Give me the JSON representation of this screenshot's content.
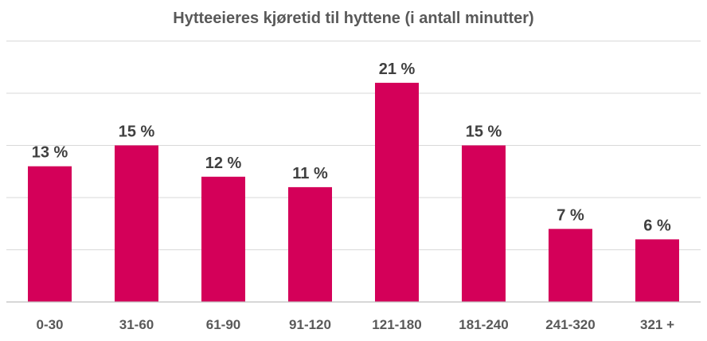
{
  "chart_data": {
    "type": "bar",
    "title": "Hytteeieres kjøretid til hyttene (i antall minutter)",
    "categories": [
      "0-30",
      "31-60",
      "61-90",
      "91-120",
      "121-180",
      "181-240",
      "241-320",
      "321 +"
    ],
    "values": [
      13,
      15,
      12,
      11,
      21,
      15,
      7,
      6
    ],
    "data_labels": [
      "13 %",
      "15 %",
      "12 %",
      "11 %",
      "21 %",
      "15 %",
      "7 %",
      "6 %"
    ],
    "xlabel": "",
    "ylabel": "",
    "ylim": [
      0,
      25
    ],
    "grid": true,
    "legend": "none",
    "bar_color": "#D40059"
  }
}
